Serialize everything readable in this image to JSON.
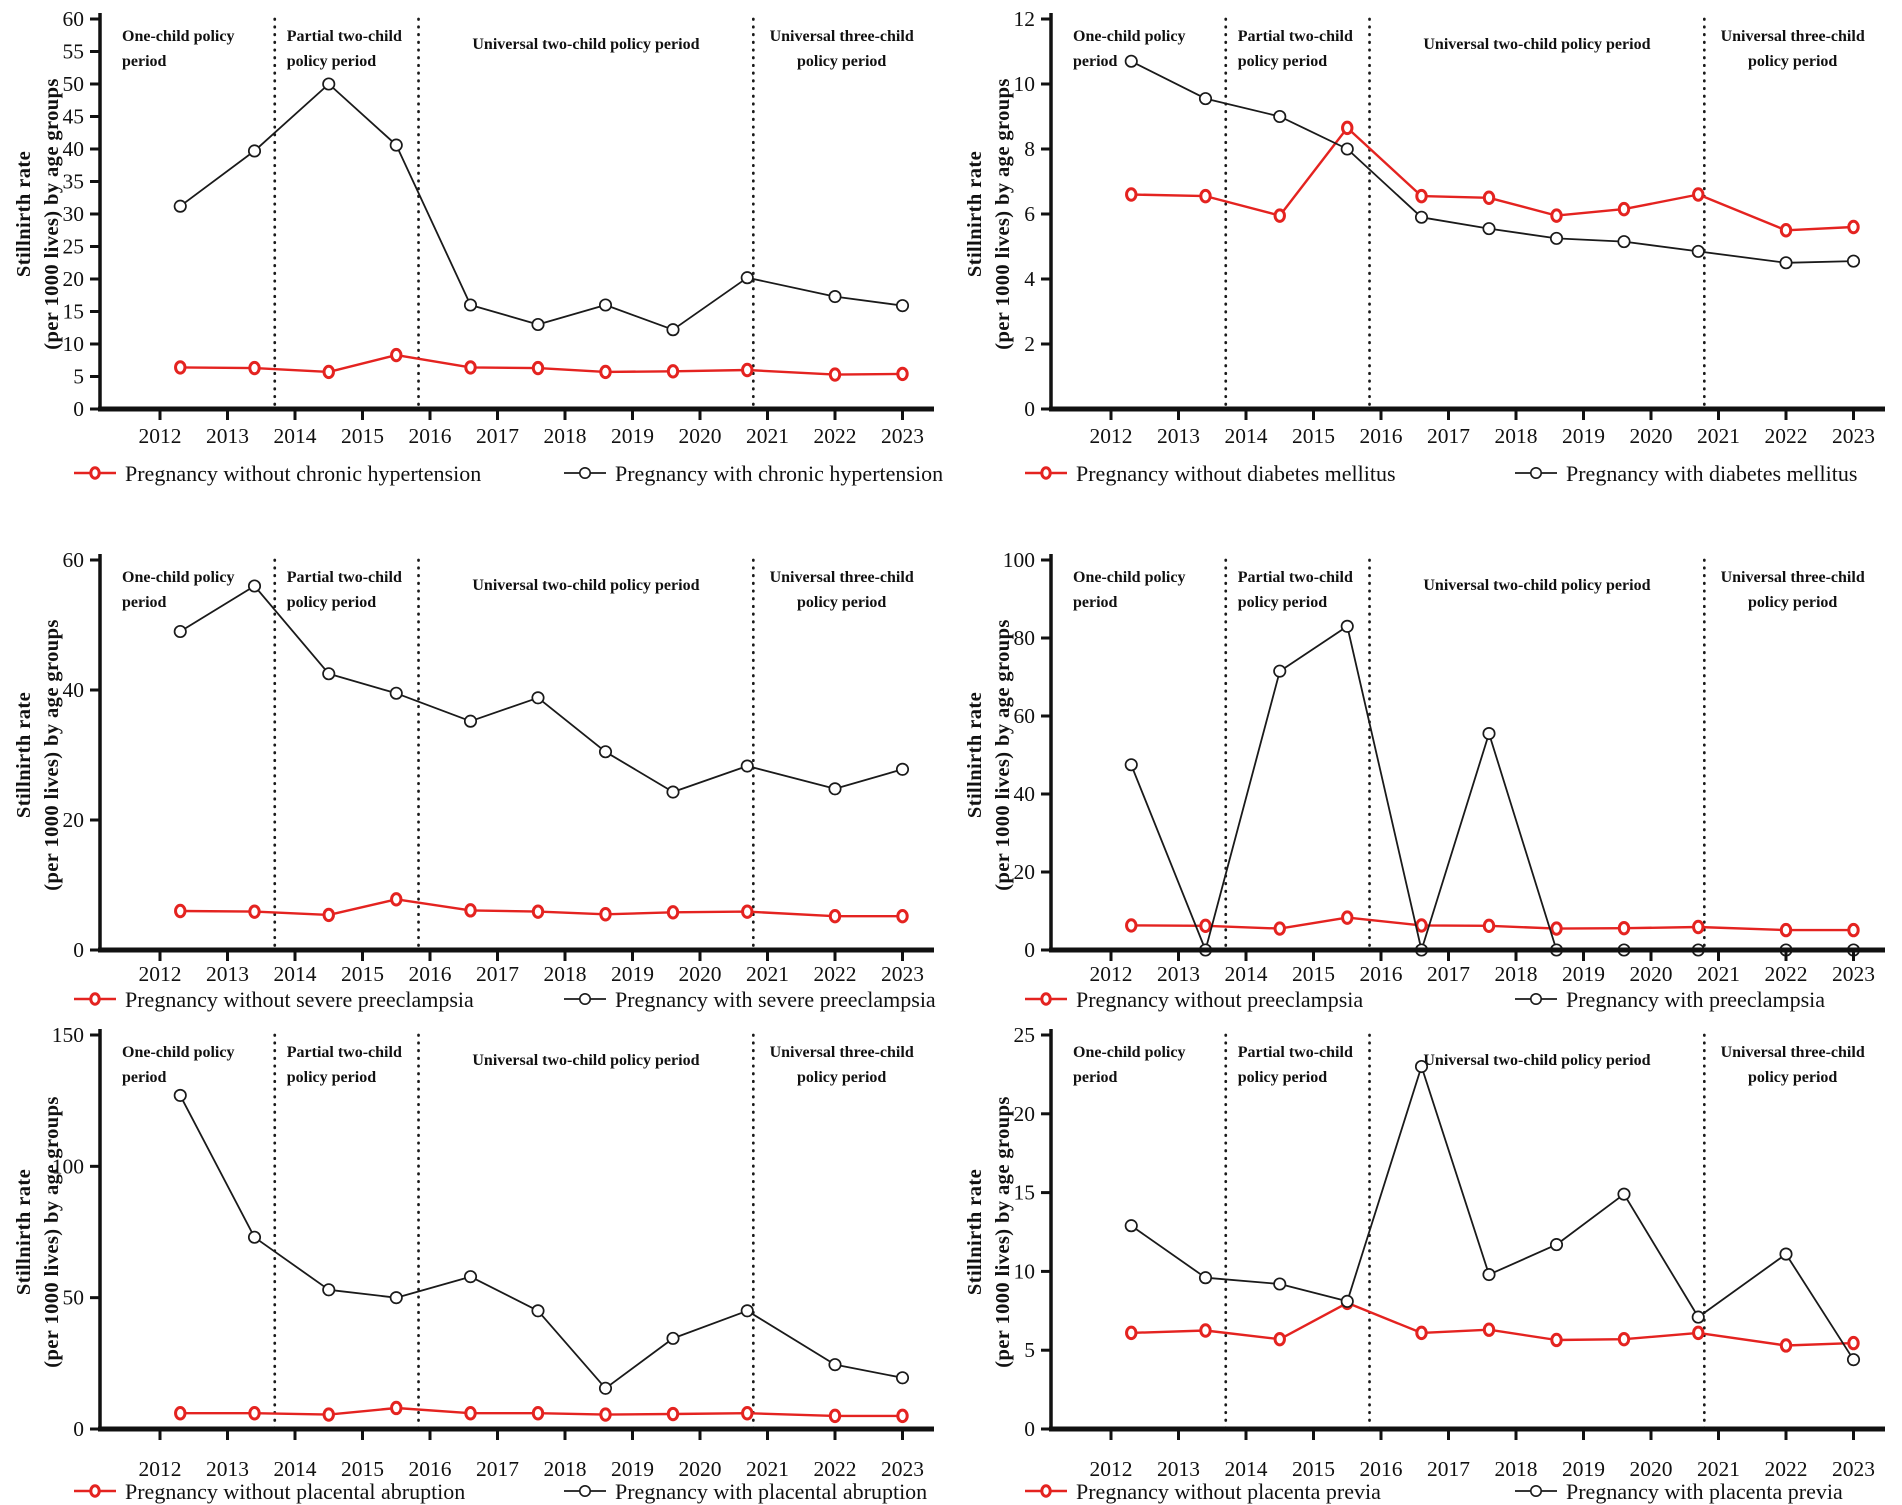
{
  "figure": {
    "ylabel_line1": "Stillnirth rate",
    "ylabel_line2": "(per 1000 lives) by age groups",
    "x_tick_labels": [
      "2012",
      "2013",
      "2014",
      "2015",
      "2016",
      "2017",
      "2018",
      "2019",
      "2020",
      "2021",
      "2022",
      "2023"
    ],
    "period_label_lines": [
      [
        "One-child policy",
        "period"
      ],
      [
        "Partial two-child",
        "policy period"
      ],
      [
        "Universal two-child policy period"
      ],
      [
        "Universal three-child",
        "policy period"
      ]
    ],
    "colors": {
      "red": "#e42320",
      "black": "#1a1a1a",
      "text": "#111111"
    }
  },
  "chart_data": [
    {
      "id": "chronic-hypertension",
      "type": "line",
      "x": [
        2012.3,
        2013.4,
        2014.5,
        2015.5,
        2016.6,
        2017.6,
        2018.6,
        2019.6,
        2020.7,
        2022.0,
        2023.0
      ],
      "x_ticks": [
        2012,
        2013,
        2014,
        2015,
        2016,
        2017,
        2018,
        2019,
        2020,
        2021,
        2022,
        2023
      ],
      "xlim": [
        2011.1,
        2023.45
      ],
      "ylim": [
        0,
        60
      ],
      "y_ticks": [
        0,
        5,
        10,
        15,
        20,
        25,
        30,
        35,
        40,
        45,
        50,
        55,
        60
      ],
      "dividers_x": [
        2013.7,
        2015.83,
        2020.79
      ],
      "period_labels": [
        "One-child policy period",
        "Partial two-child policy period",
        "Universal two-child policy period",
        "Universal three-child policy period"
      ],
      "legend_position": "bottom",
      "grid": false,
      "series": [
        {
          "name": "Pregnancy without chronic hypertension",
          "color": "#e42320",
          "marker": "bold-open-circle",
          "values": [
            6.4,
            6.3,
            5.7,
            8.3,
            6.4,
            6.3,
            5.7,
            5.8,
            6.0,
            5.3,
            5.4
          ]
        },
        {
          "name": "Pregnancy with chronic hypertension",
          "color": "#1a1a1a",
          "marker": "open-circle",
          "values": [
            31.2,
            39.7,
            50.0,
            40.6,
            16.0,
            13.0,
            16.0,
            12.2,
            20.2,
            17.3,
            15.9
          ]
        }
      ]
    },
    {
      "id": "diabetes-mellitus",
      "type": "line",
      "x": [
        2012.3,
        2013.4,
        2014.5,
        2015.5,
        2016.6,
        2017.6,
        2018.6,
        2019.6,
        2020.7,
        2022.0,
        2023.0
      ],
      "x_ticks": [
        2012,
        2013,
        2014,
        2015,
        2016,
        2017,
        2018,
        2019,
        2020,
        2021,
        2022,
        2023
      ],
      "xlim": [
        2011.1,
        2023.45
      ],
      "ylim": [
        0,
        12
      ],
      "y_ticks": [
        0,
        2,
        4,
        6,
        8,
        10,
        12
      ],
      "dividers_x": [
        2013.7,
        2015.83,
        2020.79
      ],
      "period_labels": [
        "One-child policy period",
        "Partial two-child policy period",
        "Universal two-child policy period",
        "Universal three-child policy period"
      ],
      "legend_position": "bottom",
      "grid": false,
      "series": [
        {
          "name": "Pregnancy without diabetes mellitus",
          "color": "#e42320",
          "marker": "bold-open-circle",
          "values": [
            6.6,
            6.55,
            5.95,
            8.65,
            6.55,
            6.5,
            5.95,
            6.15,
            6.6,
            5.5,
            5.6
          ]
        },
        {
          "name": "Pregnancy with diabetes mellitus",
          "color": "#1a1a1a",
          "marker": "open-circle",
          "values": [
            10.7,
            9.55,
            9.0,
            8.0,
            5.9,
            5.55,
            5.25,
            5.15,
            4.85,
            4.5,
            4.55
          ]
        }
      ]
    },
    {
      "id": "severe-preeclampsia",
      "type": "line",
      "x": [
        2012.3,
        2013.4,
        2014.5,
        2015.5,
        2016.6,
        2017.6,
        2018.6,
        2019.6,
        2020.7,
        2022.0,
        2023.0
      ],
      "x_ticks": [
        2012,
        2013,
        2014,
        2015,
        2016,
        2017,
        2018,
        2019,
        2020,
        2021,
        2022,
        2023
      ],
      "xlim": [
        2011.1,
        2023.45
      ],
      "ylim": [
        0,
        60
      ],
      "y_ticks": [
        0,
        20,
        40,
        60
      ],
      "dividers_x": [
        2013.7,
        2015.83,
        2020.79
      ],
      "period_labels": [
        "One-child policy period",
        "Partial two-child policy period",
        "Universal two-child policy period",
        "Universal three-child policy period"
      ],
      "legend_position": "bottom",
      "grid": false,
      "series": [
        {
          "name": "Pregnancy without severe preeclampsia",
          "color": "#e42320",
          "marker": "bold-open-circle",
          "values": [
            6.0,
            5.9,
            5.4,
            7.8,
            6.1,
            5.9,
            5.5,
            5.8,
            5.9,
            5.2,
            5.2
          ]
        },
        {
          "name": "Pregnancy with severe preeclampsia",
          "color": "#1a1a1a",
          "marker": "open-circle",
          "values": [
            49.0,
            56.0,
            42.5,
            39.5,
            35.2,
            38.8,
            30.5,
            24.3,
            28.3,
            24.8,
            27.8
          ]
        }
      ]
    },
    {
      "id": "preeclampsia",
      "type": "line",
      "x": [
        2012.3,
        2013.4,
        2014.5,
        2015.5,
        2016.6,
        2017.6,
        2018.6,
        2019.6,
        2020.7,
        2022.0,
        2023.0
      ],
      "x_ticks": [
        2012,
        2013,
        2014,
        2015,
        2016,
        2017,
        2018,
        2019,
        2020,
        2021,
        2022,
        2023
      ],
      "xlim": [
        2011.1,
        2023.45
      ],
      "ylim": [
        0,
        100
      ],
      "y_ticks": [
        0,
        20,
        40,
        60,
        80,
        100
      ],
      "dividers_x": [
        2013.7,
        2015.83,
        2020.79
      ],
      "period_labels": [
        "One-child policy period",
        "Partial two-child policy period",
        "Universal two-child policy period",
        "Universal three-child policy period"
      ],
      "legend_position": "bottom",
      "grid": false,
      "series": [
        {
          "name": "Pregnancy without  preeclampsia",
          "color": "#e42320",
          "marker": "bold-open-circle",
          "values": [
            6.3,
            6.2,
            5.5,
            8.3,
            6.3,
            6.2,
            5.5,
            5.6,
            5.9,
            5.1,
            5.1
          ]
        },
        {
          "name": "Pregnancy with preeclampsia",
          "color": "#1a1a1a",
          "marker": "open-circle",
          "values": [
            47.5,
            0.0,
            71.5,
            83.0,
            0.0,
            55.5,
            0.0,
            0.0,
            0.0,
            0.0,
            0.0
          ]
        }
      ]
    },
    {
      "id": "placental-abruption",
      "type": "line",
      "x": [
        2012.3,
        2013.4,
        2014.5,
        2015.5,
        2016.6,
        2017.6,
        2018.6,
        2019.6,
        2020.7,
        2022.0,
        2023.0
      ],
      "x_ticks": [
        2012,
        2013,
        2014,
        2015,
        2016,
        2017,
        2018,
        2019,
        2020,
        2021,
        2022,
        2023
      ],
      "xlim": [
        2011.1,
        2023.45
      ],
      "ylim": [
        0,
        150
      ],
      "y_ticks": [
        0,
        50,
        100,
        150
      ],
      "dividers_x": [
        2013.7,
        2015.83,
        2020.79
      ],
      "period_labels": [
        "One-child policy period",
        "Partial two-child policy period",
        "Universal two-child policy period",
        "Universal three-child policy period"
      ],
      "legend_position": "bottom",
      "grid": false,
      "series": [
        {
          "name": "Pregnancy without placental abruption",
          "color": "#e42320",
          "marker": "bold-open-circle",
          "values": [
            6.0,
            6.0,
            5.5,
            8.0,
            6.0,
            6.0,
            5.5,
            5.7,
            6.0,
            5.0,
            5.0
          ]
        },
        {
          "name": "Pregnancy with placental abruption",
          "color": "#1a1a1a",
          "marker": "open-circle",
          "values": [
            127.0,
            73.0,
            53.0,
            50.0,
            58.0,
            45.0,
            15.5,
            34.5,
            45.0,
            24.5,
            19.5
          ]
        }
      ]
    },
    {
      "id": "placenta-previa",
      "type": "line",
      "x": [
        2012.3,
        2013.4,
        2014.5,
        2015.5,
        2016.6,
        2017.6,
        2018.6,
        2019.6,
        2020.7,
        2022.0,
        2023.0
      ],
      "x_ticks": [
        2012,
        2013,
        2014,
        2015,
        2016,
        2017,
        2018,
        2019,
        2020,
        2021,
        2022,
        2023
      ],
      "xlim": [
        2011.1,
        2023.45
      ],
      "ylim": [
        0,
        25
      ],
      "y_ticks": [
        0,
        5,
        10,
        15,
        20,
        25
      ],
      "dividers_x": [
        2013.7,
        2015.83,
        2020.79
      ],
      "period_labels": [
        "One-child policy period",
        "Partial two-child policy period",
        "Universal two-child policy period",
        "Universal three-child policy period"
      ],
      "legend_position": "bottom",
      "grid": false,
      "series": [
        {
          "name": "Pregnancy without placenta previa",
          "color": "#e42320",
          "marker": "bold-open-circle",
          "values": [
            6.1,
            6.25,
            5.7,
            8.0,
            6.1,
            6.3,
            5.65,
            5.7,
            6.1,
            5.3,
            5.45
          ]
        },
        {
          "name": "Pregnancy with placenta previa",
          "color": "#1a1a1a",
          "marker": "open-circle",
          "values": [
            12.9,
            9.6,
            9.2,
            8.1,
            23.0,
            9.8,
            11.7,
            14.9,
            7.1,
            11.1,
            4.4
          ]
        }
      ]
    }
  ]
}
